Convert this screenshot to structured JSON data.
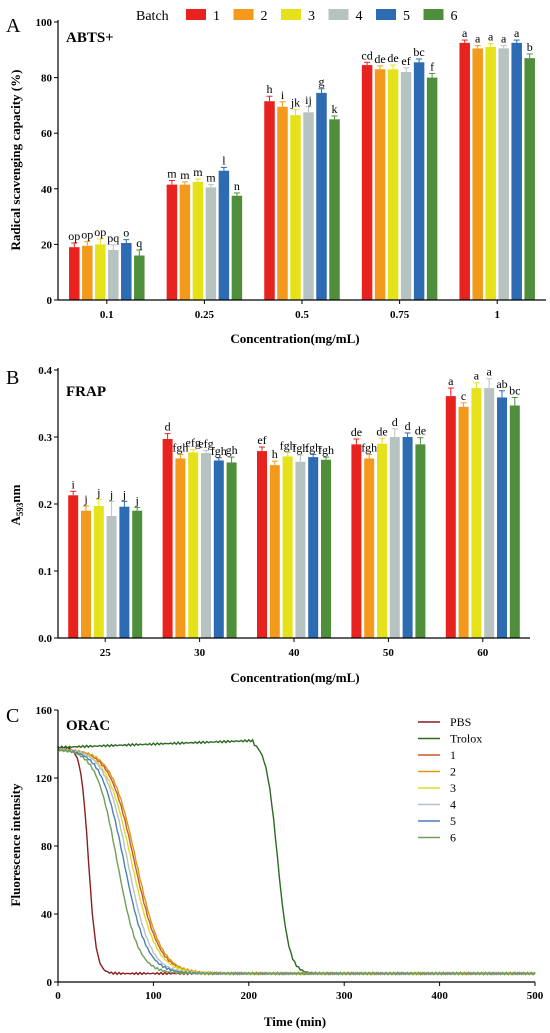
{
  "colors": {
    "batch1": "#e8221e",
    "batch2": "#f39a1c",
    "batch3": "#e6e21a",
    "batch4": "#b7c3c0",
    "batch5": "#2d6cb2",
    "batch6": "#4f8f3c",
    "pbs": "#8e1d1d",
    "trolox": "#2b6a1f",
    "c1": "#cc5a2a",
    "c2": "#d49a1a",
    "c3": "#e0da2a",
    "c4": "#b8c0c8",
    "c5": "#4f7fb8",
    "c6": "#6f9f5a"
  },
  "chart_data": [
    {
      "panel": "A",
      "type": "bar",
      "title": "ABTS+",
      "ylabel": "Radical scavenging capacity (%)",
      "xlabel": "Concentration(mg/mL)",
      "legend_title": "Batch",
      "legend_position": "top",
      "ylim": [
        0,
        100
      ],
      "yticks": [
        "0",
        "20",
        "40",
        "60",
        "80",
        "100"
      ],
      "categories": [
        "0.1",
        "0.25",
        "0.5",
        "0.75",
        "1"
      ],
      "series": [
        {
          "name": "1",
          "values": [
            19,
            41.5,
            71.5,
            84.5,
            92.5
          ],
          "errors": [
            1.5,
            1.5,
            1.8,
            1.0,
            1.0
          ],
          "letters": [
            "op",
            "m",
            "h",
            "cd",
            "a"
          ]
        },
        {
          "name": "2",
          "values": [
            19.5,
            41.5,
            69.5,
            83,
            90.5
          ],
          "errors": [
            1.5,
            1.0,
            1.8,
            1.2,
            1.0
          ],
          "letters": [
            "op",
            "m",
            "i",
            "de",
            "a"
          ]
        },
        {
          "name": "3",
          "values": [
            20,
            42.5,
            66.5,
            83,
            91
          ],
          "errors": [
            2.0,
            1.0,
            2.0,
            1.5,
            1.2
          ],
          "letters": [
            "op",
            "m",
            "jk",
            "de",
            "a"
          ]
        },
        {
          "name": "4",
          "values": [
            18,
            40.5,
            67.5,
            82,
            90.5
          ],
          "errors": [
            1.8,
            1.0,
            2.0,
            1.5,
            1.0
          ],
          "letters": [
            "pq",
            "m",
            "ij",
            "ef",
            "a"
          ]
        },
        {
          "name": "5",
          "values": [
            20.5,
            46.5,
            74.5,
            85.5,
            92.5
          ],
          "errors": [
            1.2,
            1.2,
            1.5,
            1.2,
            1.0
          ],
          "letters": [
            "o",
            "l",
            "g",
            "bc",
            "a"
          ]
        },
        {
          "name": "6",
          "values": [
            16,
            37.5,
            65,
            80,
            87
          ],
          "errors": [
            2.0,
            1.0,
            1.2,
            1.5,
            1.5
          ],
          "letters": [
            "q",
            "n",
            "k",
            "f",
            "b"
          ]
        }
      ]
    },
    {
      "panel": "B",
      "type": "bar",
      "title": "FRAP",
      "ylabel": "A",
      "ylabel_sub": "593",
      "ylabel_suffix": "nm",
      "xlabel": "Concentration(mg/mL)",
      "ylim": [
        0,
        0.4
      ],
      "yticks": [
        "0.0",
        "0.1",
        "0.2",
        "0.3",
        "0.4"
      ],
      "categories": [
        "25",
        "30",
        "40",
        "50",
        "60"
      ],
      "series": [
        {
          "name": "1",
          "values": [
            0.213,
            0.297,
            0.279,
            0.289,
            0.361
          ],
          "errors": [
            0.006,
            0.008,
            0.006,
            0.008,
            0.012
          ],
          "letters": [
            "i",
            "d",
            "ef",
            "de",
            "a"
          ]
        },
        {
          "name": "2",
          "values": [
            0.19,
            0.268,
            0.258,
            0.268,
            0.345
          ],
          "errors": [
            0.007,
            0.006,
            0.006,
            0.006,
            0.006
          ],
          "letters": [
            "j",
            "fgh",
            "h",
            "fgh",
            "c"
          ]
        },
        {
          "name": "3",
          "values": [
            0.197,
            0.277,
            0.271,
            0.29,
            0.373
          ],
          "errors": [
            0.01,
            0.004,
            0.006,
            0.008,
            0.008
          ],
          "letters": [
            "j",
            "efg",
            "fgh",
            "de",
            "a"
          ]
        },
        {
          "name": "4",
          "values": [
            0.182,
            0.276,
            0.263,
            0.3,
            0.373
          ],
          "errors": [
            0.022,
            0.004,
            0.01,
            0.012,
            0.014
          ],
          "letters": [
            "j",
            "efg",
            "fgh",
            "d",
            "a"
          ]
        },
        {
          "name": "5",
          "values": [
            0.196,
            0.265,
            0.27,
            0.3,
            0.359
          ],
          "errors": [
            0.008,
            0.004,
            0.004,
            0.006,
            0.01
          ],
          "letters": [
            "j",
            "fgh",
            "fgh",
            "d",
            "ab"
          ]
        },
        {
          "name": "6",
          "values": [
            0.19,
            0.262,
            0.266,
            0.289,
            0.347
          ],
          "errors": [
            0.005,
            0.008,
            0.004,
            0.01,
            0.012
          ],
          "letters": [
            "j",
            "gh",
            "fgh",
            "de",
            "bc"
          ]
        }
      ]
    },
    {
      "panel": "C",
      "type": "line",
      "title": "ORAC",
      "ylabel": "Fluorescence intensity",
      "xlabel": "Time (min)",
      "xlim": [
        0,
        500
      ],
      "ylim": [
        0,
        160
      ],
      "xticks": [
        "0",
        "100",
        "200",
        "300",
        "400",
        "500"
      ],
      "yticks": [
        "0",
        "40",
        "80",
        "120",
        "160"
      ],
      "legend_position": "top-right",
      "baseline": 5,
      "series": [
        {
          "name": "PBS",
          "plateau": 138,
          "t50": 32,
          "width": 4
        },
        {
          "name": "Trolox",
          "plateau": 142,
          "t50": 230,
          "width": 6
        },
        {
          "name": "1",
          "plateau": 137,
          "t50": 80,
          "width": 13
        },
        {
          "name": "2",
          "plateau": 137,
          "t50": 82,
          "width": 13
        },
        {
          "name": "3",
          "plateau": 137,
          "t50": 77,
          "width": 13
        },
        {
          "name": "4",
          "plateau": 137,
          "t50": 73,
          "width": 12
        },
        {
          "name": "5",
          "plateau": 137,
          "t50": 69,
          "width": 12
        },
        {
          "name": "6",
          "plateau": 137,
          "t50": 62,
          "width": 11
        }
      ]
    }
  ],
  "panel_letters": [
    "A",
    "B",
    "C"
  ]
}
